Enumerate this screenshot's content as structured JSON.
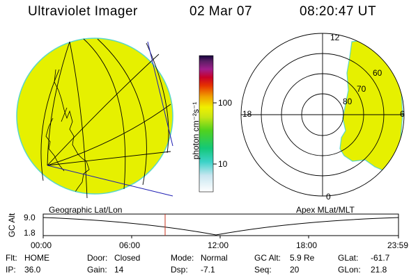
{
  "header": {
    "instrument": "Ultraviolet Imager",
    "date": "02 Mar 07",
    "time": "08:20:47 UT"
  },
  "colorbar": {
    "unit_label": "photon cm⁻²s⁻¹",
    "ticks": [
      "100",
      "10"
    ]
  },
  "polar_plot": {
    "mlt_labels": {
      "top": "12",
      "left": "18",
      "right": "6",
      "bottom": "0"
    },
    "lat_labels": [
      "60",
      "70",
      "80"
    ]
  },
  "panel_labels": {
    "left": "Geographic Lat/Lon",
    "right": "Apex MLat/MLT"
  },
  "altitude_plot": {
    "axis_label": "GC Alt",
    "y_ticks": [
      "9.0",
      "1.8"
    ],
    "x_ticks": [
      "00:00",
      "06:00",
      "12:00",
      "18:00",
      "23:59"
    ]
  },
  "info": {
    "rows": [
      [
        {
          "key": "Flt:",
          "val": "HOME"
        },
        {
          "key": "Door:",
          "val": "Closed"
        },
        {
          "key": "Mode:",
          "val": "Normal"
        },
        {
          "key": "GC Alt:",
          "val": "5.9 Re"
        },
        {
          "key": "GLat:",
          "val": "-61.7"
        }
      ],
      [
        {
          "key": "IP:",
          "val": "36.0"
        },
        {
          "key": "Gain:",
          "val": "14"
        },
        {
          "key": "Dsp:",
          "val": "-7.1"
        },
        {
          "key": "Seq:",
          "val": "20"
        },
        {
          "key": "GLon:",
          "val": "21.8"
        }
      ]
    ]
  },
  "colors": {
    "image_fill": "#e6f000",
    "image_edge": "#59d7c8",
    "marker": "#c8321e",
    "overlay_line": "#1e1eb4"
  }
}
